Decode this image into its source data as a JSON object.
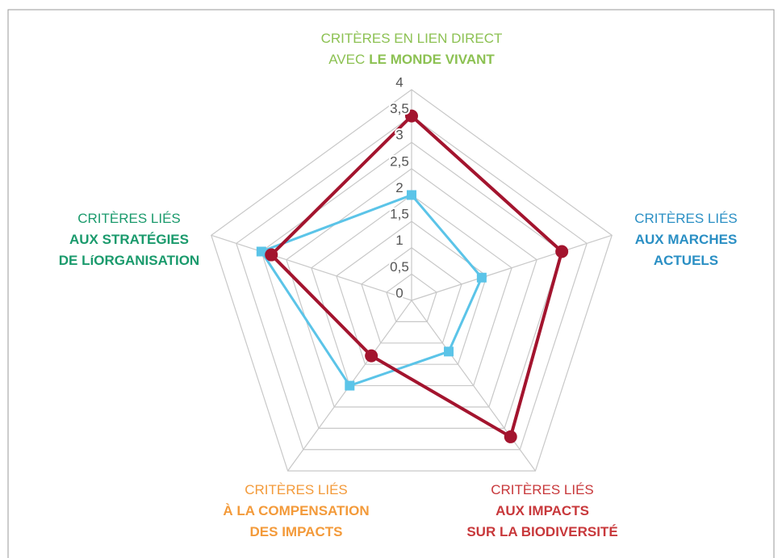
{
  "chart_data": {
    "type": "radar",
    "categories": [
      {
        "color": "#8cc152",
        "lines": [
          [
            {
              "text": "CRITÈRES EN LIEN DIRECT",
              "bold": false
            }
          ],
          [
            {
              "text": "AVEC",
              "bold": false
            },
            {
              "text": "LE MONDE VIVANT",
              "bold": true
            }
          ]
        ]
      },
      {
        "color": "#2a8fc4",
        "lines": [
          [
            {
              "text": "CRITÈRES LIÉS",
              "bold": false
            }
          ],
          [
            {
              "text": "AUX MARCHES",
              "bold": true
            }
          ],
          [
            {
              "text": "ACTUELS",
              "bold": true
            }
          ]
        ]
      },
      {
        "color": "#c8383b",
        "lines": [
          [
            {
              "text": "CRITÈRES LIÉS",
              "bold": false
            }
          ],
          [
            {
              "text": "AUX IMPACTS",
              "bold": true
            }
          ],
          [
            {
              "text": "SUR LA BIODIVERSITÉ",
              "bold": true
            }
          ]
        ]
      },
      {
        "color": "#f39a3a",
        "lines": [
          [
            {
              "text": "CRITÈRES LIÉS",
              "bold": false
            }
          ],
          [
            {
              "text": "À LA COMPENSATION",
              "bold": true
            }
          ],
          [
            {
              "text": "DES IMPACTS",
              "bold": true
            }
          ]
        ]
      },
      {
        "color": "#1a9a6c",
        "lines": [
          [
            {
              "text": "CRITÈRES LIÉS",
              "bold": false
            }
          ],
          [
            {
              "text": "AUX STRATÉGIES",
              "bold": true
            }
          ],
          [
            {
              "text": "DE LíORGANISATION",
              "bold": true
            }
          ]
        ]
      }
    ],
    "series": [
      {
        "color": "#5bc4e8",
        "marker": "square",
        "values": [
          2,
          1.4,
          1.2,
          2,
          3
        ]
      },
      {
        "color": "#a3142e",
        "marker": "circle",
        "values": [
          3.5,
          3,
          3.2,
          1.3,
          2.8
        ]
      }
    ],
    "ylim": [
      0,
      4
    ],
    "yticks": [
      0,
      {
        "value": 0.5,
        "label": "0,5"
      },
      1,
      {
        "value": 1.5,
        "label": "1,5"
      },
      2,
      {
        "value": 2.5,
        "label": "2,5"
      },
      3,
      {
        "value": 3.5,
        "label": "3,5"
      },
      4
    ],
    "grid": true
  }
}
